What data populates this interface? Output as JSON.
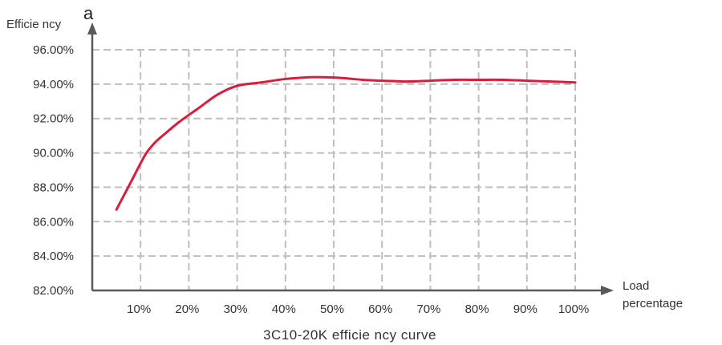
{
  "chart_data": {
    "type": "line",
    "title": "3C10-20K efficie ncy curve",
    "panel_label": "a",
    "ylabel": "Efficie ncy",
    "xlabel_line1": "Load",
    "xlabel_line2": "percentage",
    "categories": [
      "10%",
      "20%",
      "30%",
      "40%",
      "50%",
      "60%",
      "70%",
      "80%",
      "90%",
      "100%"
    ],
    "y_ticks": [
      "82.00%",
      "84.00%",
      "86.00%",
      "88.00%",
      "90.00%",
      "92.00%",
      "94.00%",
      "96.00%"
    ],
    "ylim": [
      82,
      96
    ],
    "xlim": [
      0,
      100
    ],
    "grid": true,
    "series": [
      {
        "color": "#d81e3c",
        "x": [
          5,
          8,
          11,
          13,
          15,
          18,
          22,
          26,
          30,
          35,
          40,
          45,
          48,
          52,
          56,
          60,
          65,
          70,
          75,
          80,
          85,
          90,
          95,
          100
        ],
        "y": [
          86.7,
          88.3,
          89.9,
          90.6,
          91.1,
          91.8,
          92.6,
          93.4,
          93.9,
          94.1,
          94.3,
          94.4,
          94.4,
          94.35,
          94.25,
          94.2,
          94.15,
          94.2,
          94.25,
          94.25,
          94.25,
          94.2,
          94.15,
          94.1
        ]
      }
    ],
    "colors": {
      "axis": "#595959",
      "grid": "#bfbfbf",
      "text": "#333333"
    }
  }
}
